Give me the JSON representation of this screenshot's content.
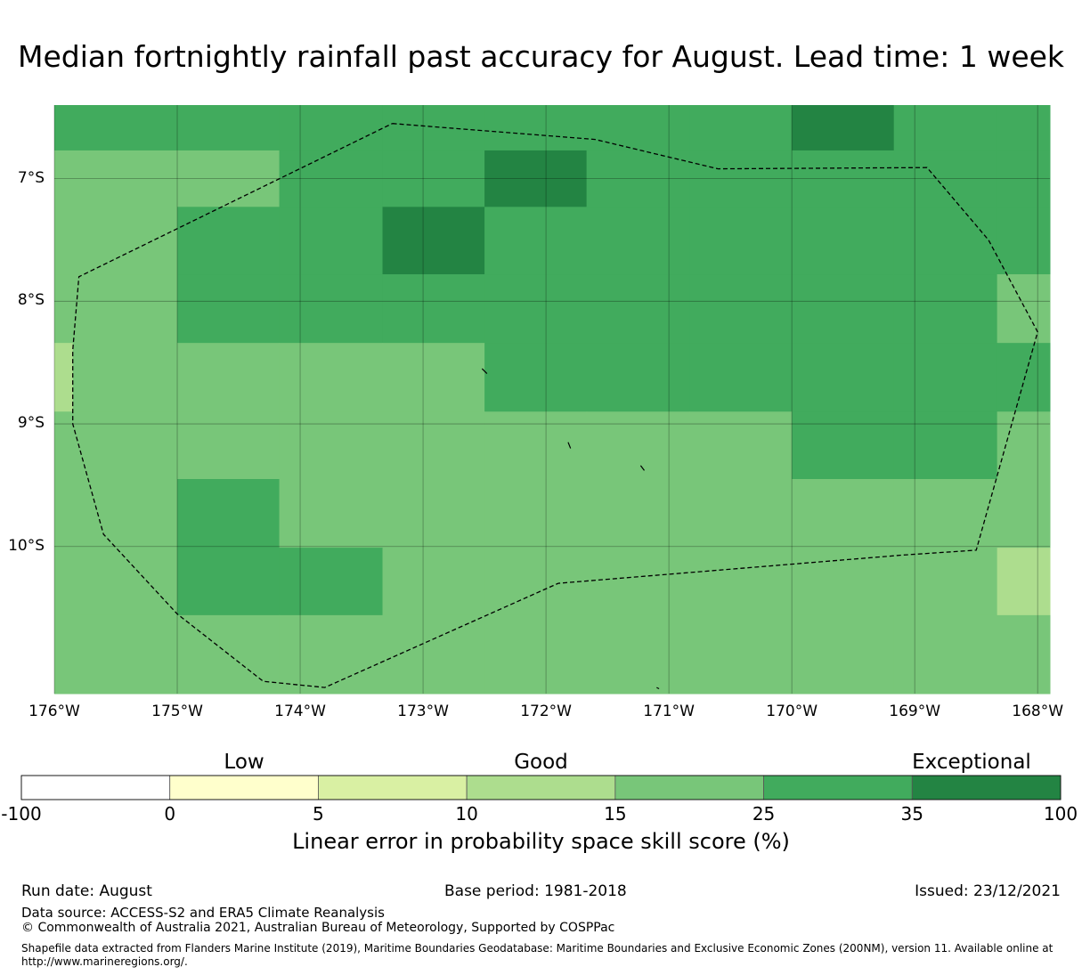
{
  "title": "Median fortnightly rainfall past accuracy for August. Lead time: 1 week",
  "map": {
    "lat_labels": [
      "7°S",
      "8°S",
      "9°S",
      "10°S"
    ],
    "lon_labels": [
      "176°W",
      "175°W",
      "174°W",
      "173°W",
      "172°W",
      "171°W",
      "170°W",
      "169°W",
      "168°W"
    ],
    "extent": {
      "lon": [
        -176,
        -167.9
      ],
      "lat": [
        -11.2,
        -6.4
      ]
    },
    "grid_lons": [
      -176,
      -175,
      -174,
      -173,
      -172,
      -171,
      -170,
      -169,
      -168
    ],
    "grid_lats": [
      -7,
      -8,
      -9,
      -10
    ],
    "cell_lon_edges": [
      -176,
      -175,
      -174.17,
      -173.33,
      -172.5,
      -171.67,
      -170.83,
      -170,
      -169.17,
      -168.33,
      -167.9
    ],
    "cell_lat_edges": [
      -6.4,
      -6.77,
      -7.23,
      -7.78,
      -8.34,
      -8.9,
      -9.45,
      -10.01,
      -10.56,
      -11.2
    ],
    "cell_classes": [
      [
        5,
        5,
        5,
        5,
        5,
        5,
        5,
        6,
        5,
        5
      ],
      [
        4,
        4,
        5,
        5,
        6,
        5,
        5,
        5,
        5,
        5
      ],
      [
        4,
        5,
        5,
        6,
        5,
        5,
        5,
        5,
        5,
        5
      ],
      [
        4,
        5,
        5,
        5,
        5,
        5,
        5,
        5,
        5,
        4
      ],
      [
        4,
        4,
        4,
        4,
        5,
        5,
        5,
        5,
        5,
        5
      ],
      [
        4,
        4,
        4,
        4,
        4,
        4,
        4,
        5,
        5,
        4
      ],
      [
        4,
        5,
        4,
        4,
        4,
        4,
        4,
        4,
        4,
        4
      ],
      [
        4,
        5,
        5,
        4,
        4,
        4,
        4,
        4,
        4,
        3
      ],
      [
        4,
        4,
        4,
        4,
        4,
        4,
        4,
        4,
        4,
        4
      ]
    ],
    "small_cell": {
      "lon": [
        -176,
        -175.85
      ],
      "lat": [
        -8.34,
        -8.9
      ],
      "class": 3
    },
    "eez_boundary": [
      [
        -173.25,
        -6.55
      ],
      [
        -171.6,
        -6.68
      ],
      [
        -170.6,
        -6.92
      ],
      [
        -168.9,
        -6.91
      ],
      [
        -168.4,
        -7.5
      ],
      [
        -168.0,
        -8.25
      ],
      [
        -168.5,
        -10.03
      ],
      [
        -169.1,
        -10.07
      ],
      [
        -171.9,
        -10.3
      ],
      [
        -173.8,
        -11.15
      ],
      [
        -174.3,
        -11.1
      ],
      [
        -175.0,
        -10.55
      ],
      [
        -175.6,
        -9.9
      ],
      [
        -175.85,
        -9.0
      ],
      [
        -175.85,
        -8.4
      ],
      [
        -175.8,
        -7.8
      ],
      [
        -173.25,
        -6.55
      ]
    ],
    "islands": [
      [
        [
          -172.52,
          -8.55
        ],
        [
          -172.48,
          -8.59
        ]
      ],
      [
        [
          -171.82,
          -9.15
        ],
        [
          -171.8,
          -9.2
        ]
      ],
      [
        [
          -171.23,
          -9.34
        ],
        [
          -171.2,
          -9.38
        ]
      ],
      [
        [
          -171.1,
          -11.15
        ],
        [
          -171.08,
          -11.16
        ]
      ]
    ]
  },
  "legend": {
    "categories": [
      "Low",
      "Good",
      "Exceptional"
    ],
    "ticks": [
      "-100",
      "0",
      "5",
      "10",
      "15",
      "25",
      "35",
      "100"
    ],
    "colors": [
      "#ffffff",
      "#ffffcc",
      "#d9f0a3",
      "#addd8e",
      "#78c679",
      "#41ab5d",
      "#238443"
    ],
    "label": "Linear error in probability space skill score (%)"
  },
  "footer": {
    "run_date": "Run date: August",
    "base_period": "Base period: 1981-2018",
    "issued": "Issued: 23/12/2021",
    "data_source": "Data source: ACCESS-S2 and ERA5 Climate Reanalysis",
    "copyright": "© Commonwealth of Australia 2021, Australian Bureau of Meteorology, Supported by COSPPac",
    "shapefile": "Shapefile data extracted from Flanders Marine Institute (2019), Maritime Boundaries Geodatabase: Maritime Boundaries and Exclusive Economic Zones (200NM), version 11. Available online at http://www.marineregions.org/."
  }
}
